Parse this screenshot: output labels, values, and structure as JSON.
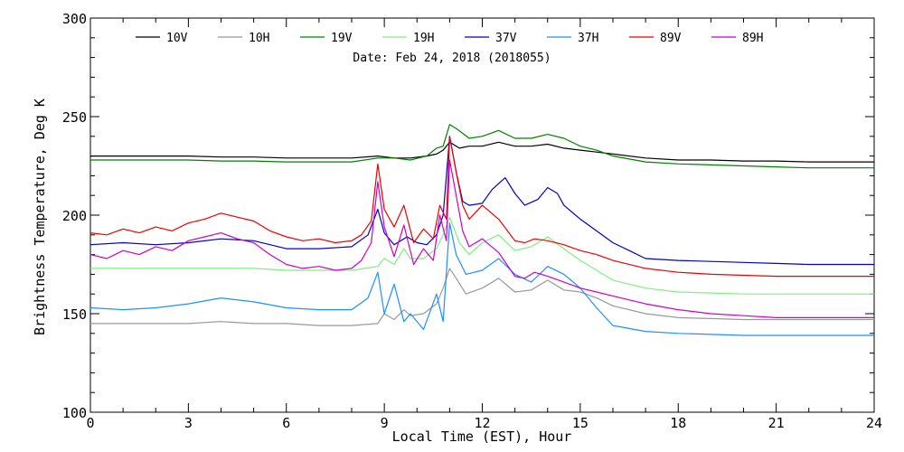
{
  "chart_data": {
    "type": "line",
    "annotation": "Date: Feb 24, 2018 (2018055)",
    "xlabel": "Local Time (EST), Hour",
    "ylabel": "Brightness Temperature, Deg K",
    "xlim": [
      0,
      24
    ],
    "ylim": [
      100,
      300
    ],
    "xticks": [
      0,
      3,
      6,
      9,
      12,
      15,
      18,
      21,
      24
    ],
    "yticks": [
      100,
      150,
      200,
      250,
      300
    ],
    "legend_position": "top",
    "grid": false,
    "series": [
      {
        "name": "10V",
        "color": "#000000",
        "x": [
          0,
          1,
          2,
          3,
          4,
          5,
          6,
          7,
          8,
          8.8,
          9.3,
          9.8,
          10.3,
          10.6,
          10.8,
          11.0,
          11.3,
          11.6,
          12.0,
          12.5,
          13.0,
          13.5,
          14.0,
          14.5,
          15.0,
          15.5,
          16,
          17,
          18,
          19,
          20,
          21,
          22,
          23,
          24
        ],
        "y": [
          230,
          230,
          230,
          230,
          229.5,
          229.5,
          229,
          229,
          229,
          230,
          229,
          229,
          230,
          231,
          233,
          237,
          234,
          235,
          235,
          237,
          235,
          235,
          236,
          234,
          233,
          232,
          231,
          229,
          228,
          228,
          227.5,
          227.5,
          227,
          227,
          227
        ]
      },
      {
        "name": "10H",
        "color": "#999999",
        "x": [
          0,
          1,
          2,
          3,
          4,
          5,
          6,
          7,
          8,
          8.8,
          9.0,
          9.3,
          9.6,
          9.8,
          10.2,
          10.6,
          10.8,
          11.0,
          11.2,
          11.5,
          12.0,
          12.5,
          13.0,
          13.5,
          14.0,
          14.5,
          15.0,
          15.5,
          16,
          17,
          18,
          19,
          20,
          21,
          22,
          23,
          24
        ],
        "y": [
          145,
          145,
          145,
          145,
          146,
          145,
          145,
          144,
          144,
          145,
          150,
          147,
          152,
          149,
          150,
          155,
          163,
          173,
          168,
          160,
          163,
          168,
          161,
          162,
          167,
          162,
          161,
          158,
          154,
          150,
          148,
          147.5,
          147,
          147,
          147,
          147,
          147
        ]
      },
      {
        "name": "19V",
        "color": "#008000",
        "x": [
          0,
          1,
          2,
          3,
          4,
          5,
          6,
          7,
          8,
          8.8,
          9.3,
          9.8,
          10.3,
          10.6,
          10.8,
          11.0,
          11.2,
          11.6,
          12.0,
          12.5,
          13.0,
          13.5,
          14.0,
          14.5,
          15.0,
          15.5,
          16,
          17,
          18,
          19,
          20,
          21,
          22,
          23,
          24
        ],
        "y": [
          228,
          228,
          228,
          228,
          227.5,
          227.5,
          227,
          227,
          227,
          229,
          229,
          228,
          230,
          234,
          235,
          246,
          244,
          239,
          240,
          243,
          239,
          239,
          241,
          239,
          235,
          233,
          230,
          227,
          226,
          225.5,
          225,
          224.5,
          224,
          224,
          224
        ]
      },
      {
        "name": "19H",
        "color": "#80ee80",
        "x": [
          0,
          1,
          2,
          3,
          4,
          5,
          6,
          7,
          8,
          8.8,
          9.0,
          9.3,
          9.6,
          9.8,
          10.2,
          10.6,
          10.8,
          11.0,
          11.3,
          11.6,
          12.0,
          12.5,
          13.0,
          13.5,
          14.0,
          14.5,
          15.0,
          15.5,
          16,
          17,
          18,
          19,
          20,
          21,
          22,
          23,
          24
        ],
        "y": [
          173,
          173,
          173,
          173,
          173,
          173,
          172,
          172,
          172,
          174,
          178,
          175,
          183,
          178,
          178,
          183,
          190,
          199,
          186,
          180,
          186,
          190,
          182,
          184,
          189,
          183,
          177,
          172,
          167,
          163,
          161,
          160.5,
          160,
          160,
          160,
          160,
          160
        ]
      },
      {
        "name": "37V",
        "color": "#0000cc",
        "x": [
          0,
          1,
          2,
          3,
          4,
          5,
          6,
          7,
          8,
          8.5,
          8.8,
          9.0,
          9.3,
          9.7,
          10.0,
          10.3,
          10.6,
          10.8,
          11.0,
          11.2,
          11.4,
          11.6,
          12.0,
          12.3,
          12.7,
          13.0,
          13.3,
          13.7,
          14.0,
          14.3,
          14.5,
          15.0,
          15.5,
          16,
          16.5,
          17,
          18,
          19,
          20,
          21,
          22,
          23,
          24
        ],
        "y": [
          185,
          186,
          185,
          186,
          188,
          187,
          183,
          183,
          184,
          190,
          203,
          191,
          185,
          189,
          186,
          185,
          190,
          200,
          240,
          222,
          207,
          205,
          206,
          213,
          219,
          211,
          205,
          208,
          214,
          211,
          205,
          198,
          192,
          186,
          182,
          178,
          177,
          176.5,
          176,
          175.5,
          175,
          175,
          175
        ]
      },
      {
        "name": "37H",
        "color": "#1e90ff",
        "x": [
          0,
          1,
          2,
          3,
          4,
          5,
          6,
          7,
          8,
          8.5,
          8.8,
          9.0,
          9.3,
          9.6,
          9.8,
          10.2,
          10.6,
          10.8,
          11.0,
          11.2,
          11.5,
          12.0,
          12.5,
          13.0,
          13.5,
          14.0,
          14.5,
          15.0,
          15.5,
          16,
          17,
          18,
          19,
          20,
          21,
          22,
          23,
          24
        ],
        "y": [
          153,
          152,
          153,
          155,
          158,
          156,
          153,
          152,
          152,
          158,
          171,
          150,
          165,
          146,
          150,
          142,
          160,
          146,
          196,
          180,
          170,
          172,
          178,
          170,
          166,
          174,
          170,
          163,
          153,
          144,
          141,
          140,
          139.5,
          139,
          139,
          139,
          139,
          139
        ]
      },
      {
        "name": "89V",
        "color": "#ee0000",
        "x": [
          0,
          0.5,
          1,
          1.5,
          2,
          2.5,
          3,
          3.5,
          4,
          4.5,
          5,
          5.5,
          6,
          6.5,
          7,
          7.5,
          8,
          8.3,
          8.6,
          8.8,
          9.0,
          9.3,
          9.6,
          9.9,
          10.2,
          10.5,
          10.7,
          10.9,
          11.0,
          11.2,
          11.4,
          11.6,
          12.0,
          12.5,
          13.0,
          13.3,
          13.6,
          14.0,
          14.5,
          15.0,
          15.5,
          16,
          17,
          18,
          19,
          20,
          21,
          22,
          23,
          24
        ],
        "y": [
          191,
          190,
          193,
          191,
          194,
          192,
          196,
          198,
          201,
          199,
          197,
          192,
          189,
          187,
          188,
          186,
          187,
          190,
          197,
          226,
          203,
          194,
          205,
          186,
          193,
          188,
          205,
          198,
          240,
          222,
          205,
          198,
          205,
          198,
          187,
          186,
          188,
          187,
          185,
          182,
          180,
          177,
          173,
          171,
          170,
          169.5,
          169,
          169,
          169,
          169
        ]
      },
      {
        "name": "89H",
        "color": "#cc00cc",
        "x": [
          0,
          0.5,
          1,
          1.5,
          2,
          2.5,
          3,
          3.5,
          4,
          4.5,
          5,
          5.5,
          6,
          6.5,
          7,
          7.5,
          8,
          8.3,
          8.6,
          8.8,
          9.0,
          9.3,
          9.6,
          9.9,
          10.2,
          10.5,
          10.7,
          10.9,
          11.0,
          11.2,
          11.4,
          11.6,
          12.0,
          12.5,
          13.0,
          13.3,
          13.6,
          14.0,
          14.5,
          15.0,
          15.5,
          16,
          17,
          18,
          19,
          20,
          21,
          22,
          23,
          24
        ],
        "y": [
          180,
          178,
          182,
          180,
          184,
          182,
          187,
          189,
          191,
          188,
          186,
          180,
          175,
          173,
          174,
          172,
          173,
          177,
          186,
          217,
          194,
          179,
          195,
          175,
          183,
          177,
          200,
          187,
          228,
          210,
          192,
          184,
          188,
          181,
          169,
          168,
          171,
          169,
          166,
          163,
          161,
          159,
          155,
          152,
          150,
          149,
          148,
          148,
          148,
          148
        ]
      }
    ]
  }
}
